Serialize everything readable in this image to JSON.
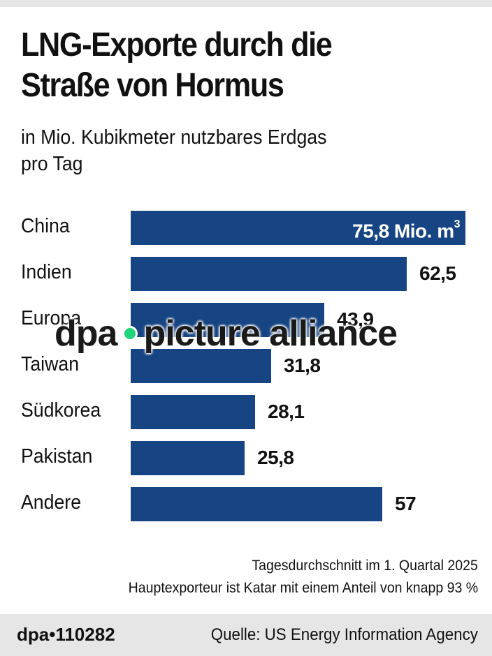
{
  "header": {
    "title_line1": "LNG-Exporte durch die",
    "title_line2": "Straße von Hormus",
    "subtitle_line1": "in Mio. Kubikmeter nutzbares Erdgas",
    "subtitle_line2": "pro Tag"
  },
  "chart": {
    "bar_color": "#174584",
    "rows": [
      {
        "label": "China",
        "value_label": "75,8 Mio. m",
        "unit_sup": "3",
        "value": 75.8
      },
      {
        "label": "Indien",
        "value_label": "62,5",
        "value": 62.5
      },
      {
        "label": "Europa",
        "value_label": "43,9",
        "value": 43.9
      },
      {
        "label": "Taiwan",
        "value_label": "31,8",
        "value": 31.8
      },
      {
        "label": "Südkorea",
        "value_label": "28,1",
        "value": 28.1
      },
      {
        "label": "Pakistan",
        "value_label": "25,8",
        "value": 25.8
      },
      {
        "label": "Andere",
        "value_label": "57",
        "value": 57
      }
    ]
  },
  "notes": {
    "line1": "Tagesdurchschnitt im 1. Quartal 2025",
    "line2": "Hauptexporteur ist Katar mit einem Anteil von knapp 93 %"
  },
  "footer": {
    "graphic_id": "dpa•110282",
    "source": "Quelle: US Energy Information Agency"
  },
  "watermark": {
    "left": "dpa",
    "right": "picture alliance",
    "dot_color": "#1fd47a"
  },
  "chart_data": {
    "type": "bar",
    "orientation": "horizontal",
    "title": "LNG-Exporte durch die Straße von Hormus",
    "subtitle": "in Mio. Kubikmeter nutzbares Erdgas pro Tag",
    "categories": [
      "China",
      "Indien",
      "Europa",
      "Taiwan",
      "Südkorea",
      "Pakistan",
      "Andere"
    ],
    "values": [
      75.8,
      62.5,
      43.9,
      31.8,
      28.1,
      25.8,
      57
    ],
    "unit": "Mio. m³",
    "xlabel": "",
    "ylabel": "",
    "xlim": [
      0,
      75.8
    ],
    "grid": false,
    "legend": "none",
    "annotations": [
      "Tagesdurchschnitt im 1. Quartal 2025",
      "Hauptexporteur ist Katar mit einem Anteil von knapp 93 %"
    ],
    "source": "US Energy Information Agency"
  }
}
